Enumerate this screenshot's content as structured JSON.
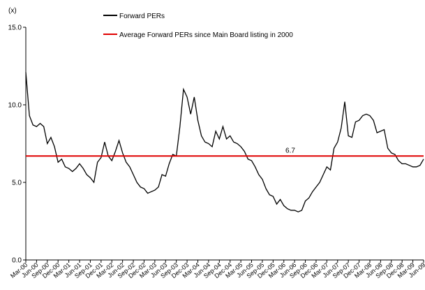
{
  "chart_data": {
    "type": "line",
    "y_unit_label": "(x)",
    "categories": [
      "Mar-00",
      null,
      null,
      "Jun-00",
      null,
      null,
      "Sep-00",
      null,
      null,
      "Dec-00",
      null,
      null,
      "Mar-01",
      null,
      null,
      "Jun-01",
      null,
      null,
      "Sep-01",
      null,
      null,
      "Dec-01",
      null,
      null,
      "Mar-02",
      null,
      null,
      "Jun-02",
      null,
      null,
      "Sep-02",
      null,
      null,
      "Dec-02",
      null,
      null,
      "Mar-03",
      null,
      null,
      "Jun-03",
      null,
      null,
      "Sep-03",
      null,
      null,
      "Dec-03",
      null,
      null,
      "Mar-04",
      null,
      null,
      "Jun-04",
      null,
      null,
      "Sep-04",
      null,
      null,
      "Dec-04",
      null,
      null,
      "Mar-05",
      null,
      null,
      "Jun-05",
      null,
      null,
      "Sep-05",
      null,
      null,
      "Dec-05",
      null,
      null,
      "Mar-06",
      null,
      null,
      "Jun-06",
      null,
      null,
      "Sep-06",
      null,
      null,
      "Dec-06",
      null,
      null,
      "Mar-07",
      null,
      null,
      "Jun-07",
      null,
      null,
      "Sep-07",
      null,
      null,
      "Dec-07",
      null,
      null,
      "Mar-08",
      null,
      null,
      "Jun-08",
      null,
      null,
      "Sep-08",
      null,
      null,
      "Dec-08",
      null,
      null,
      "Mar-09",
      null,
      null,
      "Jun-09"
    ],
    "series": [
      {
        "name": "Forward PERs",
        "color": "#000000",
        "values": [
          12.1,
          9.3,
          8.7,
          8.6,
          8.8,
          8.6,
          7.5,
          7.9,
          7.3,
          6.3,
          6.5,
          6.0,
          5.9,
          5.7,
          5.9,
          6.2,
          5.9,
          5.5,
          5.3,
          5.0,
          6.3,
          6.6,
          7.6,
          6.7,
          6.4,
          7.0,
          7.7,
          6.9,
          6.3,
          6.0,
          5.5,
          5.0,
          4.7,
          4.6,
          4.3,
          4.4,
          4.5,
          4.7,
          5.5,
          5.4,
          6.2,
          6.8,
          6.7,
          8.6,
          11.0,
          10.5,
          9.4,
          10.5,
          9.0,
          8.0,
          7.6,
          7.5,
          7.3,
          8.3,
          7.8,
          8.6,
          7.8,
          8.0,
          7.6,
          7.5,
          7.3,
          7.0,
          6.5,
          6.4,
          6.0,
          5.5,
          5.2,
          4.6,
          4.2,
          4.1,
          3.6,
          3.9,
          3.5,
          3.3,
          3.2,
          3.2,
          3.1,
          3.2,
          3.8,
          4.0,
          4.4,
          4.7,
          5.0,
          5.5,
          6.0,
          5.8,
          7.2,
          7.6,
          8.5,
          10.2,
          8.0,
          7.9,
          8.9,
          9.0,
          9.3,
          9.4,
          9.3,
          9.0,
          8.2,
          8.3,
          8.4,
          7.2,
          6.9,
          6.8,
          6.4,
          6.2,
          6.2,
          6.1,
          6.0,
          6.0,
          6.1,
          6.5
        ]
      },
      {
        "name": "Average Forward PERs since Main Board listing in 2000",
        "color": "#e00000",
        "value": 6.7
      }
    ],
    "ylim": [
      0,
      15
    ],
    "yticks": [
      {
        "value": 0,
        "label": "0.0"
      },
      {
        "value": 5,
        "label": "5.0"
      },
      {
        "value": 10,
        "label": "10.0"
      },
      {
        "value": 15,
        "label": "15.0"
      }
    ],
    "legend": "top"
  }
}
